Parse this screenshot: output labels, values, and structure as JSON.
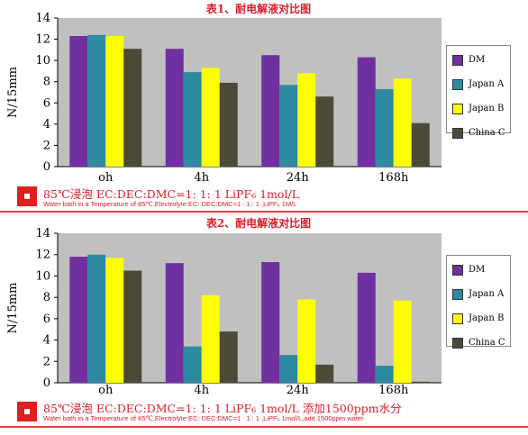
{
  "chart_data": [
    {
      "type": "bar",
      "title": "表1、耐电解液对比图",
      "ylabel": "N/15mm",
      "xlabel": "",
      "categories": [
        "oh",
        "4h",
        "24h",
        "168h"
      ],
      "ylim": [
        0,
        14
      ],
      "yticks": [
        0,
        2,
        4,
        6,
        8,
        10,
        12,
        14
      ],
      "grid": false,
      "legend": "right",
      "series": [
        {
          "name": "DM",
          "color": "#7030a0",
          "values": [
            12.3,
            11.1,
            10.5,
            10.3
          ]
        },
        {
          "name": "Japan A",
          "color": "#2e8aa0",
          "values": [
            12.4,
            8.9,
            7.7,
            7.3
          ]
        },
        {
          "name": "Japan B",
          "color": "#ffff00",
          "values": [
            12.3,
            9.3,
            8.8,
            8.3
          ]
        },
        {
          "name": "China C",
          "color": "#4d4a3a",
          "values": [
            11.1,
            7.9,
            6.6,
            4.1
          ]
        }
      ]
    },
    {
      "type": "bar",
      "title": "表2、耐电解液对比图",
      "ylabel": "N/15mm",
      "xlabel": "",
      "categories": [
        "oh",
        "4h",
        "24h",
        "168h"
      ],
      "ylim": [
        0,
        14
      ],
      "yticks": [
        0,
        2,
        4,
        6,
        8,
        10,
        12,
        14
      ],
      "grid": false,
      "legend": "right",
      "series": [
        {
          "name": "DM",
          "color": "#7030a0",
          "values": [
            11.8,
            11.2,
            11.3,
            10.3
          ]
        },
        {
          "name": "Japan A",
          "color": "#2e8aa0",
          "values": [
            12.0,
            3.4,
            2.6,
            1.6
          ]
        },
        {
          "name": "Japan B",
          "color": "#ffff00",
          "values": [
            11.7,
            8.2,
            7.8,
            7.7
          ]
        },
        {
          "name": "China C",
          "color": "#4d4a3a",
          "values": [
            10.5,
            4.8,
            1.7,
            0.1
          ]
        }
      ]
    }
  ],
  "captions": [
    {
      "main": "85℃浸泡  EC:DEC:DMC=1:  1:  1  LiPF₆  1mol/L",
      "sub": "Water bath in a Temperature of 85℃,Electrolyte:EC: DEC:DMC=1 : 1 : 1 ,LiPF₆ 1M/L"
    },
    {
      "main": "85℃浸泡  EC:DEC:DMC=1:  1:  1  LiPF₆  1mol/L  添加1500ppm水分",
      "sub": "Water bath in a Temperature of 85℃,Electrolyte:EC: DEC:DMC=1 : 1 : 1 ,LiPF₆ 1mol/L,add 1500ppm water"
    }
  ],
  "colors": {
    "plot_background": "#c0c0c0",
    "title_color": "#d8202c",
    "caption_color": "#d8202c"
  }
}
